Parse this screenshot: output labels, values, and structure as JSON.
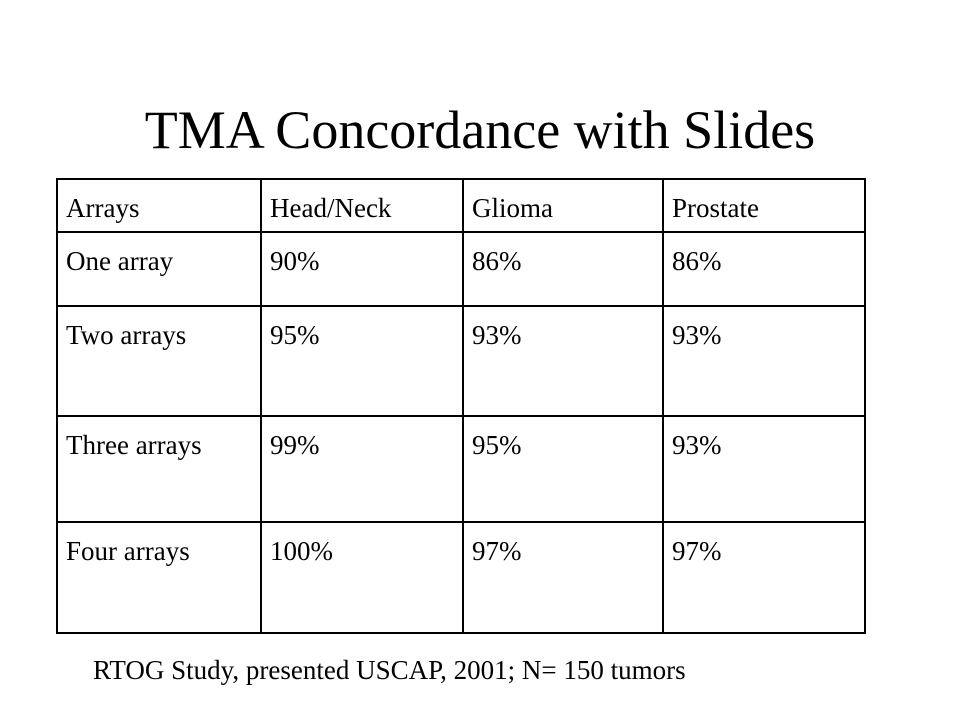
{
  "slide": {
    "title": "TMA Concordance with Slides",
    "footnote": "RTOG Study, presented USCAP, 2001; N= 150 tumors"
  },
  "table": {
    "headers": [
      "Arrays",
      "Head/Neck",
      "Glioma",
      "Prostate"
    ],
    "rows": [
      [
        "One array",
        "90%",
        "86%",
        "86%"
      ],
      [
        "Two arrays",
        "95%",
        "93%",
        "93%"
      ],
      [
        "Three arrays",
        "99%",
        "95%",
        "93%"
      ],
      [
        "Four arrays",
        "100%",
        "97%",
        "97%"
      ]
    ]
  }
}
